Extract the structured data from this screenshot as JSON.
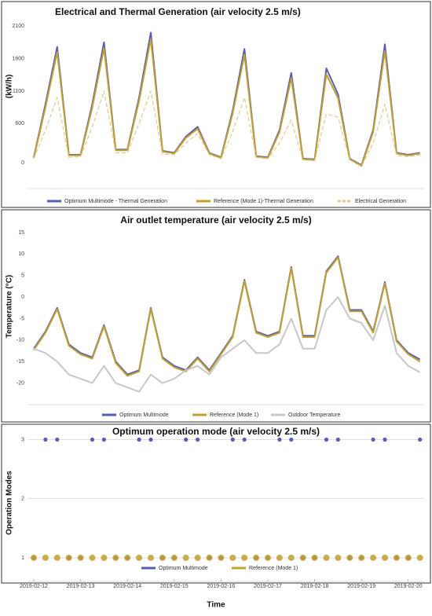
{
  "chart_data": [
    {
      "type": "line",
      "title": "Electrical and Thermal Generation (air velocity  2.5  m/s)",
      "y_label": "(kW/h)",
      "ylim": [
        -400,
        2200
      ],
      "yticks": [
        0,
        600,
        1100,
        1600,
        2100
      ],
      "grid": false,
      "series": [
        {
          "name": "Optimum Multimode - Thermal Generation",
          "color": "#5b5bb8",
          "line_style": "solid",
          "values": [
            80,
            900,
            1780,
            120,
            120,
            900,
            1850,
            200,
            200,
            1000,
            2000,
            180,
            150,
            400,
            550,
            150,
            80,
            800,
            1750,
            100,
            80,
            500,
            1380,
            60,
            50,
            1450,
            1050,
            60,
            -40,
            500,
            1820,
            150,
            120,
            150
          ]
        },
        {
          "name": "Reference (Mode 1)-Thermal Generation",
          "color": "#c0a030",
          "line_style": "solid",
          "values": [
            70,
            850,
            1700,
            110,
            110,
            850,
            1760,
            190,
            190,
            950,
            1900,
            170,
            140,
            380,
            520,
            140,
            70,
            760,
            1660,
            90,
            70,
            470,
            1300,
            50,
            40,
            1360,
            990,
            50,
            -50,
            470,
            1720,
            140,
            110,
            140
          ]
        },
        {
          "name": "Electrical Generation",
          "color": "#e2c890",
          "line_style": "dashed",
          "values": [
            60,
            500,
            1000,
            80,
            90,
            550,
            1100,
            150,
            150,
            600,
            1100,
            130,
            120,
            300,
            450,
            120,
            60,
            480,
            1000,
            80,
            60,
            300,
            650,
            40,
            30,
            750,
            700,
            40,
            -60,
            300,
            900,
            110,
            90,
            120
          ]
        }
      ]
    },
    {
      "type": "line",
      "title": "Air outlet temperature (air velocity  2.5  m/s)",
      "y_label": "Temperature (°C)",
      "ylim": [
        -25,
        17
      ],
      "yticks": [
        -20,
        -15,
        -10,
        -5,
        0,
        5,
        10,
        15
      ],
      "grid": false,
      "series": [
        {
          "name": "Optimum Multimode",
          "color": "#5b5bb8",
          "line_style": "solid",
          "values": [
            -12,
            -8,
            -2.5,
            -11,
            -13,
            -14,
            -6.5,
            -15,
            -18,
            -17,
            -2.5,
            -14,
            -16,
            -17,
            -14,
            -17,
            -13,
            -9,
            4,
            -8,
            -9,
            -8,
            7,
            -9,
            -9,
            6,
            9.5,
            -3,
            -3,
            -8,
            3.5,
            -10,
            -13,
            -14.5
          ]
        },
        {
          "name": "Reference (Mode 1)",
          "color": "#c0a030",
          "line_style": "solid",
          "values": [
            -12.3,
            -8.3,
            -2.8,
            -11.3,
            -13.3,
            -14.3,
            -6.8,
            -15.3,
            -18.3,
            -17.3,
            -2.8,
            -14.3,
            -16.3,
            -17.3,
            -14.3,
            -17.3,
            -13.3,
            -9.3,
            3.7,
            -8.3,
            -9.3,
            -8.3,
            6.7,
            -9.3,
            -9.3,
            5.7,
            9.2,
            -3.3,
            -3.3,
            -8.3,
            3.2,
            -10.3,
            -13.3,
            -15
          ]
        },
        {
          "name": "Outdoor Temperature",
          "color": "#c8c8c8",
          "line_style": "solid",
          "values": [
            -12,
            -13,
            -15,
            -18,
            -19,
            -20,
            -16,
            -20,
            -21,
            -22,
            -18,
            -20,
            -19,
            -17,
            -16,
            -18,
            -14,
            -12,
            -10,
            -13,
            -13,
            -11,
            -5,
            -12,
            -12,
            -3,
            0,
            -5,
            -6,
            -10,
            -2,
            -13,
            -16,
            -17.5
          ]
        }
      ]
    },
    {
      "type": "scatter",
      "title": "Optimum operation mode (air velocity  2.5  m/s)",
      "y_label": "Operation Modes",
      "x_label": "Time",
      "categories": [
        "2019-02-12",
        null,
        null,
        null,
        "2019-02-13",
        null,
        null,
        null,
        "2019-02-14",
        null,
        null,
        null,
        "2019-02-15",
        null,
        null,
        null,
        "2019-02-16",
        null,
        null,
        null,
        "2019-02-17",
        null,
        null,
        null,
        "2019-02-18",
        null,
        null,
        null,
        "2019-02-19",
        null,
        null,
        null,
        "2019-02-20",
        null
      ],
      "ylim": [
        0.6,
        3.1
      ],
      "yticks": [
        1,
        2,
        3
      ],
      "grid": true,
      "series": [
        {
          "name": "Optimum Multimode",
          "color": "#5b5bb8",
          "values": [
            1,
            3,
            3,
            1,
            1,
            3,
            3,
            1,
            1,
            3,
            3,
            1,
            1,
            3,
            3,
            1,
            1,
            3,
            3,
            1,
            1,
            3,
            3,
            1,
            1,
            3,
            3,
            1,
            1,
            3,
            3,
            1,
            1,
            3
          ]
        },
        {
          "name": "Reference (Mode 1)",
          "color": "#c0a030",
          "values": [
            1,
            1,
            1,
            1,
            1,
            1,
            1,
            1,
            1,
            1,
            1,
            1,
            1,
            1,
            1,
            1,
            1,
            1,
            1,
            1,
            1,
            1,
            1,
            1,
            1,
            1,
            1,
            1,
            1,
            1,
            1,
            1,
            1,
            1
          ]
        }
      ]
    }
  ]
}
